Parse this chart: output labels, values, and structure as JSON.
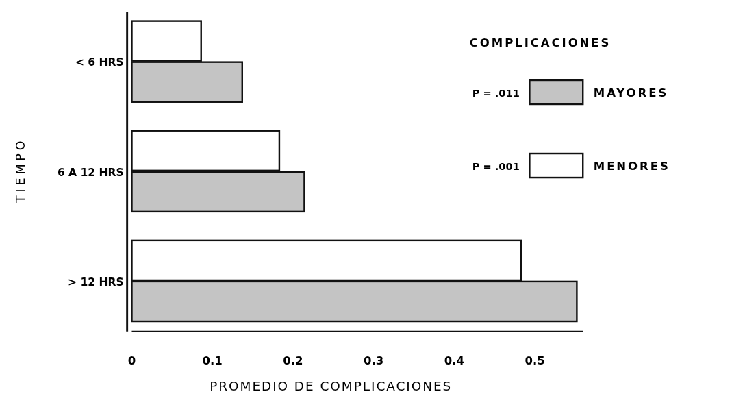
{
  "chart_data": {
    "type": "bar",
    "orientation": "horizontal",
    "xlabel": "PROMEDIO DE COMPLICACIONES",
    "ylabel": "TIEMPO",
    "legend_title": "COMPLICACIONES",
    "categories": [
      "< 6 HRS",
      "6 A 12 HRS",
      "> 12 HRS"
    ],
    "series": [
      {
        "name": "MENORES",
        "color": "#ffffff",
        "values": [
          0.086,
          0.183,
          0.483
        ]
      },
      {
        "name": "MAYORES",
        "color": "#c4c4c4",
        "values": [
          0.137,
          0.214,
          0.552
        ]
      }
    ],
    "xlim": [
      0,
      0.56
    ],
    "xticks": [
      0,
      0.1,
      0.2,
      0.3,
      0.4,
      0.5
    ],
    "annotations": [
      "P = .001",
      "P = .011"
    ],
    "legend": "top right",
    "grid": false
  }
}
